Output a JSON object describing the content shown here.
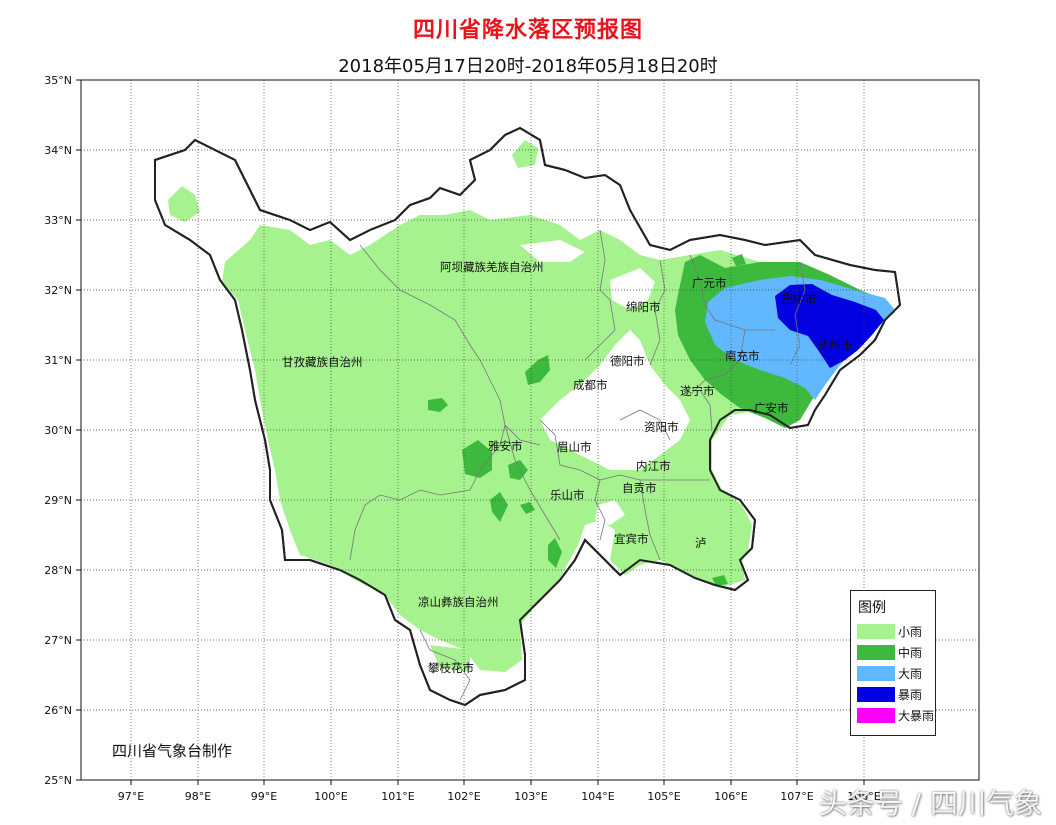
{
  "title": "四川省降水落区预报图",
  "subtitle": "2018年05月17日20时-2018年05月18日20时",
  "lat_labels": [
    "35°N",
    "34°N",
    "33°N",
    "32°N",
    "31°N",
    "30°N",
    "29°N",
    "28°N",
    "27°N",
    "26°N",
    "25°N"
  ],
  "lon_labels": [
    "97°E",
    "98°E",
    "99°E",
    "100°E",
    "101°E",
    "102°E",
    "103°E",
    "104°E",
    "105°E",
    "106°E",
    "107°E",
    "108°E"
  ],
  "places": {
    "aba": "阿坝藏族羌族自治州",
    "ganzi": "甘孜藏族自治州",
    "liangshan": "凉山彝族自治州",
    "panzhihua": "攀枝花市",
    "yaan": "雅安市",
    "meishan": "眉山市",
    "leshan": "乐山市",
    "chengdu": "成都市",
    "deyang": "德阳市",
    "mianyang": "绵阳市",
    "guangyuan": "广元市",
    "bazhong": "巴中市",
    "dazhou": "达州市",
    "nanchong": "南充市",
    "suining": "遂宁市",
    "guangan": "广安市",
    "ziyang": "资阳市",
    "neijiang": "内江市",
    "zigong": "自贡市",
    "yibin": "宜宾市",
    "luzhou": "泸"
  },
  "legend": {
    "title": "图例",
    "items": [
      {
        "label": "小雨",
        "color": "#a6f28f"
      },
      {
        "label": "中雨",
        "color": "#3dba3d"
      },
      {
        "label": "大雨",
        "color": "#61b8ff"
      },
      {
        "label": "暴雨",
        "color": "#0000e1"
      },
      {
        "label": "大暴雨",
        "color": "#fa00fa"
      }
    ]
  },
  "producer": "四川省气象台制作",
  "watermark": "头条号 / 四川气象"
}
